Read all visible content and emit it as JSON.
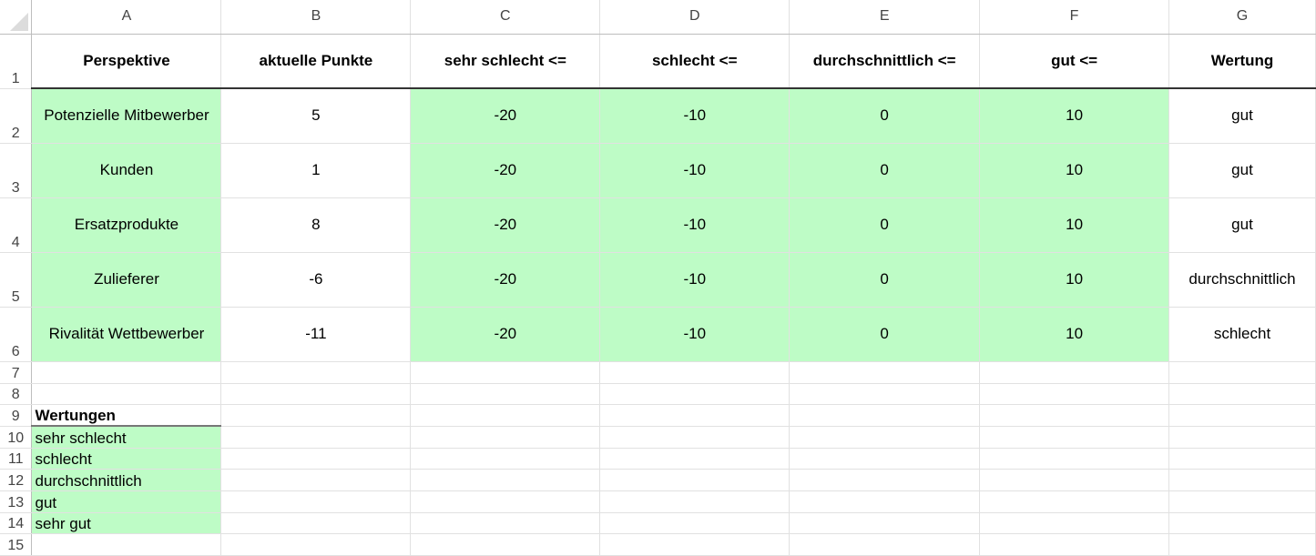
{
  "columns": [
    "A",
    "B",
    "C",
    "D",
    "E",
    "F",
    "G"
  ],
  "header": [
    "Perspektive",
    "aktuelle Punkte",
    "sehr schlecht <=",
    "schlecht <=",
    "durchschnittlich <=",
    "gut <=",
    "Wertung"
  ],
  "rows": [
    [
      "Potenzielle Mitbewerber",
      "5",
      "-20",
      "-10",
      "0",
      "10",
      "gut"
    ],
    [
      "Kunden",
      "1",
      "-20",
      "-10",
      "0",
      "10",
      "gut"
    ],
    [
      "Ersatzprodukte",
      "8",
      "-20",
      "-10",
      "0",
      "10",
      "gut"
    ],
    [
      "Zulieferer",
      "-6",
      "-20",
      "-10",
      "0",
      "10",
      "durchschnittlich"
    ],
    [
      "Rivalität Wettbewerber",
      "-11",
      "-20",
      "-10",
      "0",
      "10",
      "schlecht"
    ]
  ],
  "wertungen_title": "Wertungen",
  "wertungen": [
    "sehr schlecht",
    "schlecht",
    "durchschnittlich",
    "gut",
    "sehr gut"
  ],
  "row_numbers": [
    "1",
    "2",
    "3",
    "4",
    "5",
    "6",
    "7",
    "8",
    "9",
    "10",
    "11",
    "12",
    "13",
    "14",
    "15"
  ],
  "colors": {
    "highlight": "#befcc6"
  }
}
